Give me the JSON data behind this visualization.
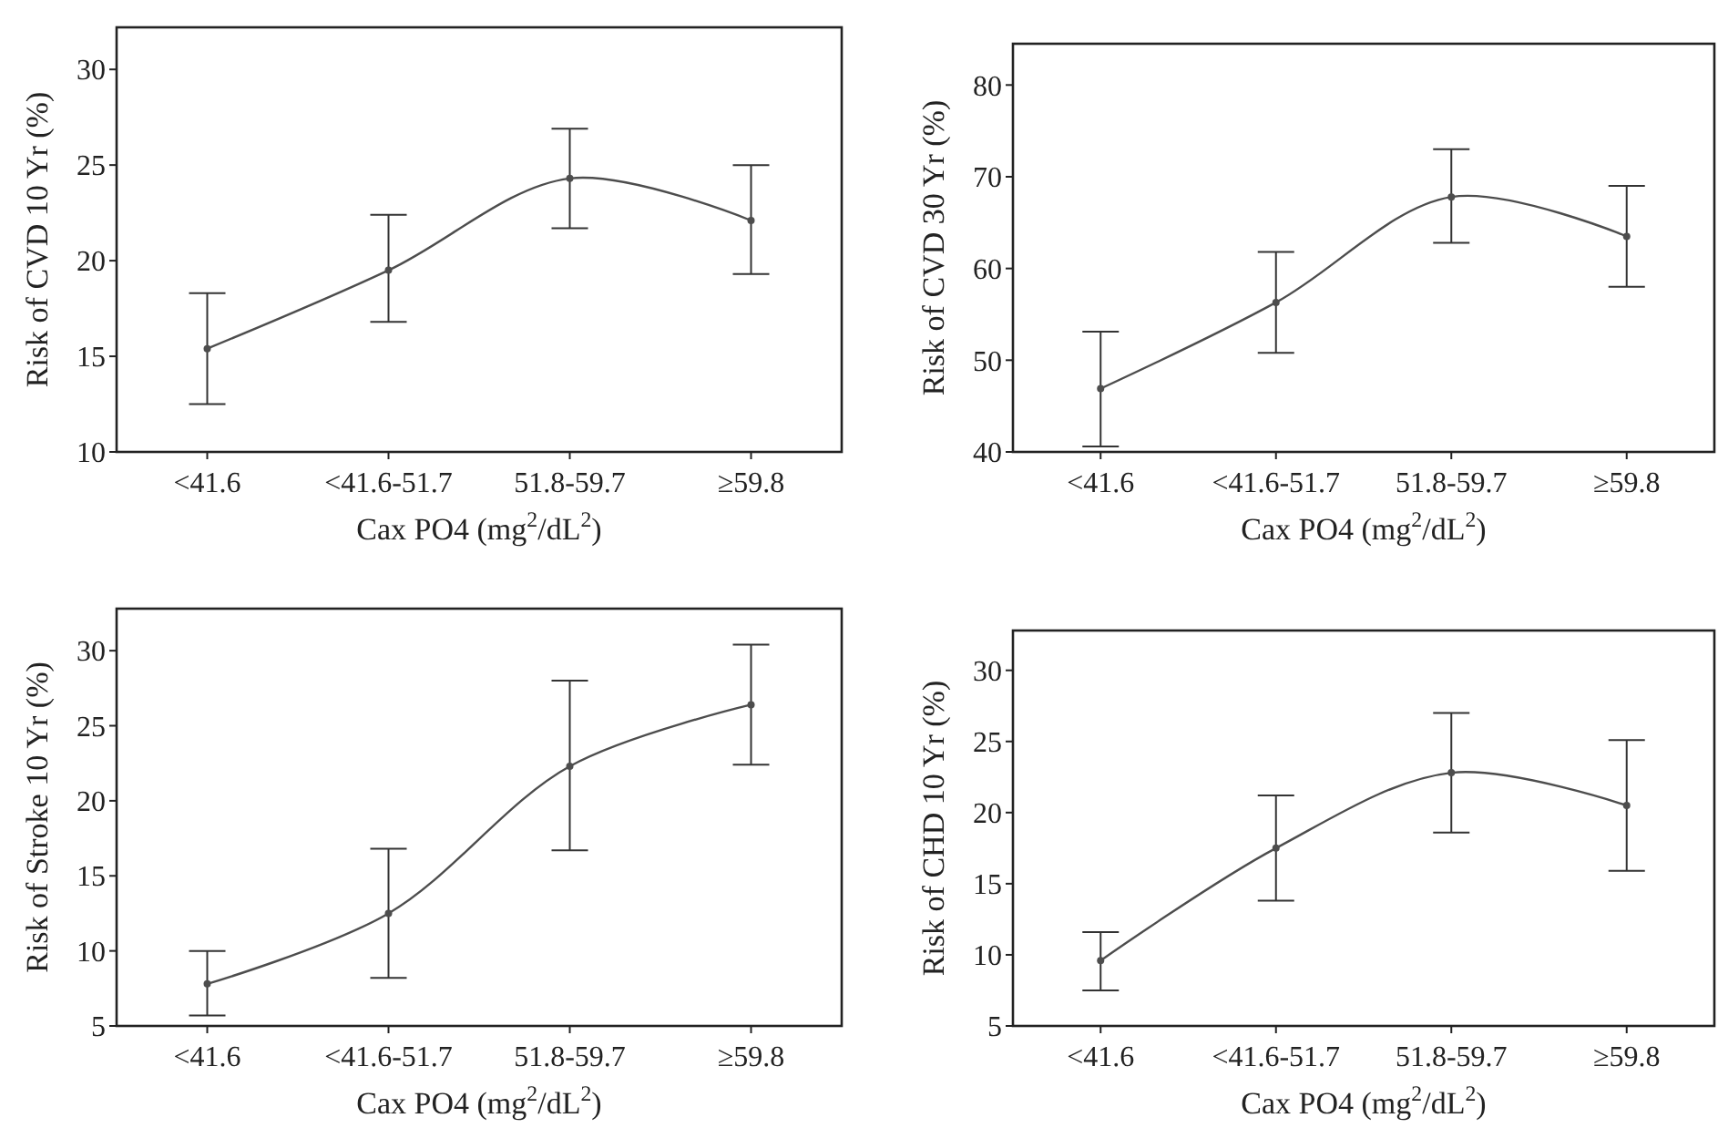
{
  "chart_data": [
    {
      "type": "line",
      "xlabel": "Cax PO4 (mg$^{2}$/dL$^{2}$)",
      "ylabel": "Risk of CVD 10 Yr (%)",
      "categories": [
        "<41.6",
        "<41.6-51.7",
        "51.8-59.7",
        "≥59.8"
      ],
      "ylim": [
        10,
        32.2
      ],
      "yticks": [
        10,
        15,
        20,
        25,
        30
      ],
      "marker": "circle",
      "series": [
        {
          "color": "#4d4d4d",
          "values": [
            15.4,
            19.5,
            24.3,
            22.1
          ],
          "errors": [
            [
              12.5,
              18.3
            ],
            [
              16.8,
              22.4
            ],
            [
              21.7,
              26.9
            ],
            [
              19.3,
              25.0
            ]
          ]
        }
      ]
    },
    {
      "type": "line",
      "xlabel": "Cax PO4 (mg$^{2}$/dL$^{2}$)",
      "ylabel": "Risk of CVD 30 Yr (%)",
      "categories": [
        "<41.6",
        "<41.6-51.7",
        "51.8-59.7",
        "≥59.8"
      ],
      "ylim": [
        40,
        84.5
      ],
      "yticks": [
        40,
        50,
        60,
        70,
        80
      ],
      "marker": "circle",
      "series": [
        {
          "color": "#4d4d4d",
          "values": [
            46.9,
            56.3,
            67.8,
            63.5
          ],
          "errors": [
            [
              40.6,
              53.1
            ],
            [
              50.8,
              61.8
            ],
            [
              62.8,
              73.0
            ],
            [
              58.0,
              69.0
            ]
          ]
        }
      ]
    },
    {
      "type": "line",
      "xlabel": "Cax PO4 (mg$^{2}$/dL$^{2}$)",
      "ylabel": "Risk of Stroke 10 Yr (%)",
      "categories": [
        "<41.6",
        "<41.6-51.7",
        "51.8-59.7",
        "≥59.8"
      ],
      "ylim": [
        5,
        32.8
      ],
      "yticks": [
        5,
        10,
        15,
        20,
        25,
        30
      ],
      "marker": "circle",
      "series": [
        {
          "color": "#4d4d4d",
          "values": [
            7.8,
            12.5,
            22.3,
            26.4
          ],
          "errors": [
            [
              5.7,
              10.0
            ],
            [
              8.2,
              16.8
            ],
            [
              16.7,
              28.0
            ],
            [
              22.4,
              30.4
            ]
          ]
        }
      ]
    },
    {
      "type": "line",
      "xlabel": "Cax PO4 (mg$^{2}$/dL$^{2}$)",
      "ylabel": "Risk of CHD 10 Yr (%)",
      "categories": [
        "<41.6",
        "<41.6-51.7",
        "51.8-59.7",
        "≥59.8"
      ],
      "ylim": [
        5,
        32.8
      ],
      "yticks": [
        5,
        10,
        15,
        20,
        25,
        30
      ],
      "marker": "circle",
      "series": [
        {
          "color": "#4d4d4d",
          "values": [
            9.6,
            17.5,
            22.8,
            20.5
          ],
          "errors": [
            [
              7.5,
              11.6
            ],
            [
              13.8,
              21.2
            ],
            [
              18.6,
              27.0
            ],
            [
              15.9,
              25.1
            ]
          ]
        }
      ]
    }
  ]
}
